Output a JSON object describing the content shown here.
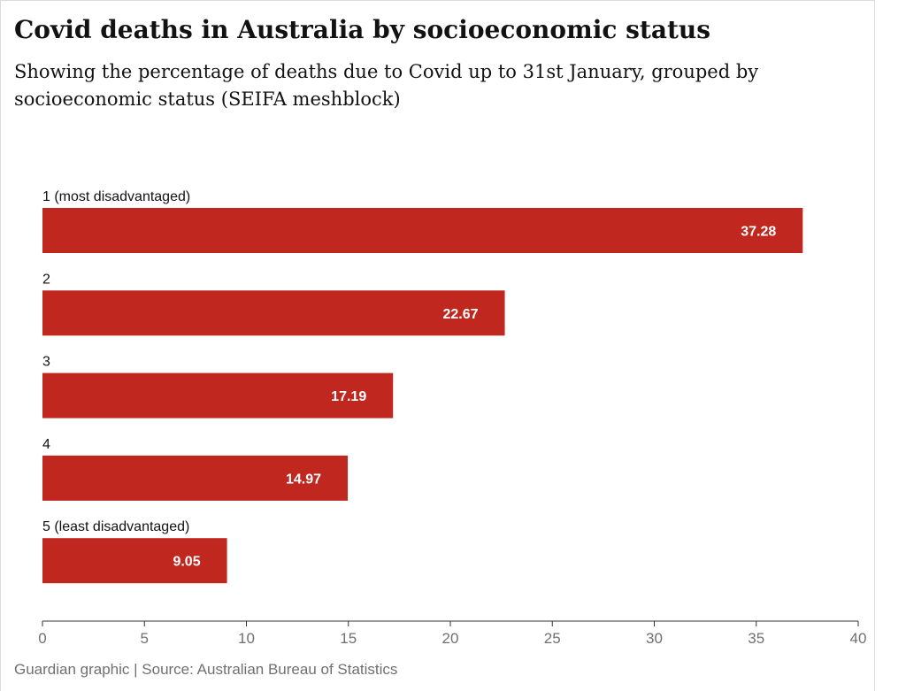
{
  "header": {
    "title": "Covid deaths in Australia by socioeconomic status",
    "subtitle": "Showing the percentage of deaths due to Covid up to 31st January, grouped by socioeconomic status (SEIFA meshblock)"
  },
  "footer": {
    "source": "Guardian graphic | Source: Australian Bureau of Statistics"
  },
  "colors": {
    "bar": "#c0271f",
    "bar_label": "#ffffff",
    "text": "#121212",
    "muted": "#707070",
    "axis": "#333333"
  },
  "chart_data": {
    "type": "bar",
    "orientation": "horizontal",
    "title": "Covid deaths in Australia by socioeconomic status",
    "subtitle": "Showing the percentage of deaths due to Covid up to 31st January, grouped by socioeconomic status (SEIFA meshblock)",
    "categories": [
      "1 (most disadvantaged)",
      "2",
      "3",
      "4",
      "5 (least disadvantaged)"
    ],
    "values": [
      37.28,
      22.67,
      17.19,
      14.97,
      9.05
    ],
    "data_labels": [
      "37.28",
      "22.67",
      "17.19",
      "14.97",
      "9.05"
    ],
    "xlim": [
      0,
      40
    ],
    "xticks": [
      0,
      5,
      10,
      15,
      20,
      25,
      30,
      35,
      40
    ],
    "grid": false,
    "legend": "none"
  }
}
